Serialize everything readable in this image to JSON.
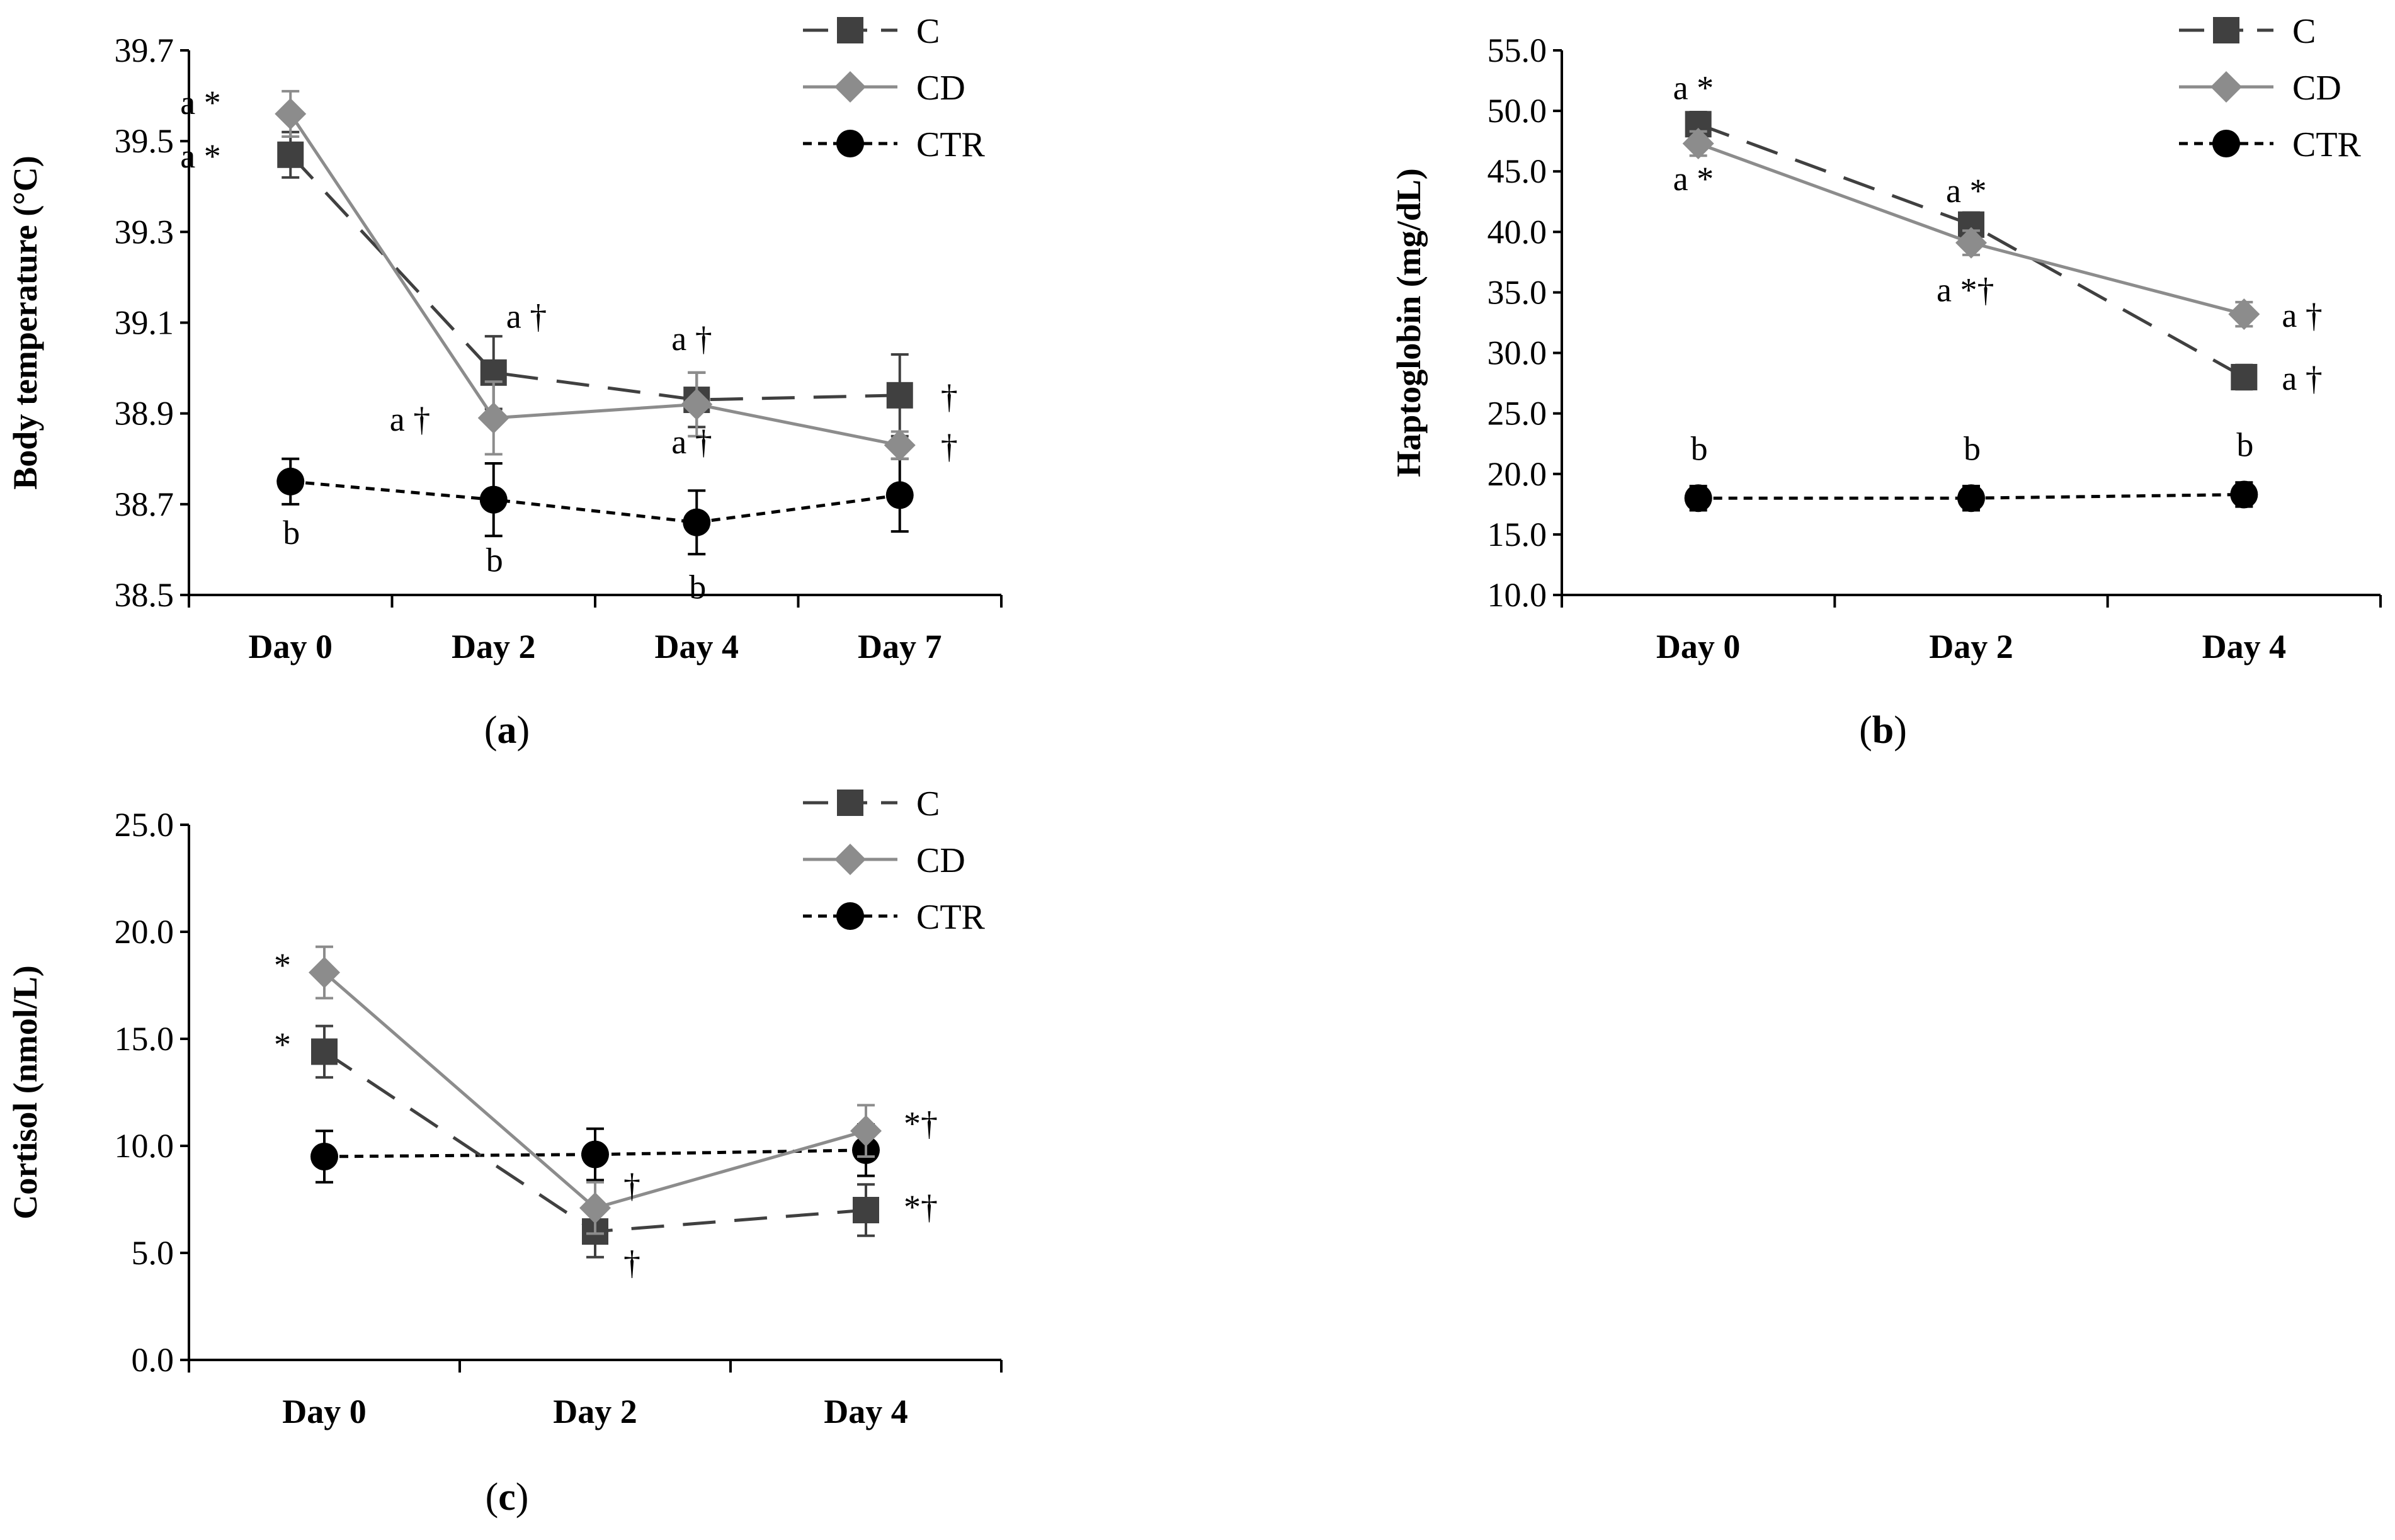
{
  "chart_data": [
    {
      "id": "a",
      "type": "line",
      "caption": "a",
      "ylabel": "Body temperature (°C)",
      "ylim": [
        38.5,
        39.7
      ],
      "ticks": [
        "38.5",
        "38.7",
        "38.9",
        "39.1",
        "39.3",
        "39.5",
        "39.7"
      ],
      "categories": [
        "Day 0",
        "Day 2",
        "Day 4",
        "Day 7"
      ],
      "series": [
        {
          "name": "C",
          "values": [
            39.47,
            38.99,
            38.93,
            38.94
          ],
          "err": [
            0.05,
            0.08,
            0.06,
            0.09
          ]
        },
        {
          "name": "CD",
          "values": [
            39.56,
            38.89,
            38.92,
            38.83
          ],
          "err": [
            0.05,
            0.08,
            0.07,
            0.03
          ]
        },
        {
          "name": "CTR",
          "values": [
            38.75,
            38.71,
            38.66,
            38.72
          ],
          "err": [
            0.05,
            0.08,
            0.07,
            0.08
          ]
        }
      ],
      "annotations": [
        {
          "text": "a *",
          "cat": 0,
          "y": 39.56,
          "dx": -175,
          "dy": 0
        },
        {
          "text": "a *",
          "cat": 0,
          "y": 39.47,
          "dx": -175,
          "dy": 20
        },
        {
          "text": "a †",
          "cat": 1,
          "y": 39.1,
          "dx": 20,
          "dy": 8
        },
        {
          "text": "a †",
          "cat": 1,
          "y": 38.89,
          "dx": -165,
          "dy": 20
        },
        {
          "text": "a †",
          "cat": 2,
          "y": 39.04,
          "dx": -40,
          "dy": 0
        },
        {
          "text": "a †",
          "cat": 2,
          "y": 38.84,
          "dx": -40,
          "dy": 20
        },
        {
          "text": "†",
          "cat": 3,
          "y": 38.94,
          "dx": 65,
          "dy": 20
        },
        {
          "text": "†",
          "cat": 3,
          "y": 38.83,
          "dx": 65,
          "dy": 20
        },
        {
          "text": "b",
          "cat": 0,
          "y": 38.64,
          "dx": -12,
          "dy": 20
        },
        {
          "text": "b",
          "cat": 1,
          "y": 38.58,
          "dx": -12,
          "dy": 20
        },
        {
          "text": "b",
          "cat": 2,
          "y": 38.52,
          "dx": -12,
          "dy": 20
        }
      ]
    },
    {
      "id": "b",
      "type": "line",
      "caption": "b",
      "ylabel": "Haptoglobin (mg/dL)",
      "ylim": [
        10,
        55
      ],
      "ticks": [
        "10.0",
        "15.0",
        "20.0",
        "25.0",
        "30.0",
        "35.0",
        "40.0",
        "45.0",
        "50.0",
        "55.0"
      ],
      "categories": [
        "Day 0",
        "Day 2",
        "Day 4"
      ],
      "series": [
        {
          "name": "C",
          "values": [
            48.9,
            40.6,
            28.0
          ],
          "err": [
            1.0,
            1.0,
            1.0
          ]
        },
        {
          "name": "CD",
          "values": [
            47.3,
            39.1,
            33.2
          ],
          "err": [
            1.0,
            1.0,
            1.0
          ]
        },
        {
          "name": "CTR",
          "values": [
            18.0,
            18.0,
            18.3
          ],
          "err": [
            1.0,
            1.0,
            1.0
          ]
        }
      ],
      "annotations": [
        {
          "text": "a *",
          "cat": 0,
          "y": 52.0,
          "dx": -40,
          "dy": 20
        },
        {
          "text": "a *",
          "cat": 0,
          "y": 44.5,
          "dx": -40,
          "dy": 20
        },
        {
          "text": "a *",
          "cat": 1,
          "y": 43.5,
          "dx": -40,
          "dy": 20
        },
        {
          "text": "a *†",
          "cat": 1,
          "y": 35.3,
          "dx": -55,
          "dy": 20
        },
        {
          "text": "a †",
          "cat": 2,
          "y": 33.2,
          "dx": 60,
          "dy": 20
        },
        {
          "text": "a †",
          "cat": 2,
          "y": 28.0,
          "dx": 60,
          "dy": 20
        },
        {
          "text": "b",
          "cat": 0,
          "y": 22.2,
          "dx": -12,
          "dy": 20
        },
        {
          "text": "b",
          "cat": 1,
          "y": 22.2,
          "dx": -12,
          "dy": 20
        },
        {
          "text": "b",
          "cat": 2,
          "y": 22.5,
          "dx": -12,
          "dy": 20
        }
      ]
    },
    {
      "id": "c",
      "type": "line",
      "caption": "c",
      "ylabel": "Cortisol (nmol/L)",
      "ylim": [
        0,
        25
      ],
      "ticks": [
        "0.0",
        "5.0",
        "10.0",
        "15.0",
        "20.0",
        "25.0"
      ],
      "categories": [
        "Day 0",
        "Day 2",
        "Day 4"
      ],
      "series": [
        {
          "name": "C",
          "values": [
            14.4,
            6.0,
            7.0
          ],
          "err": [
            1.2,
            1.2,
            1.2
          ]
        },
        {
          "name": "CD",
          "values": [
            18.1,
            7.1,
            10.7
          ],
          "err": [
            1.2,
            1.2,
            1.2
          ]
        },
        {
          "name": "CTR",
          "values": [
            9.5,
            9.6,
            9.8
          ],
          "err": [
            1.2,
            1.2,
            1.2
          ]
        }
      ],
      "annotations": [
        {
          "text": "*",
          "cat": 0,
          "y": 18.5,
          "dx": -80,
          "dy": 20
        },
        {
          "text": "*",
          "cat": 0,
          "y": 14.8,
          "dx": -80,
          "dy": 20
        },
        {
          "text": "†",
          "cat": 1,
          "y": 8.2,
          "dx": 45,
          "dy": 20
        },
        {
          "text": "†",
          "cat": 1,
          "y": 4.6,
          "dx": 45,
          "dy": 20
        },
        {
          "text": "*†",
          "cat": 2,
          "y": 11.1,
          "dx": 60,
          "dy": 20
        },
        {
          "text": "*†",
          "cat": 2,
          "y": 7.2,
          "dx": 60,
          "dy": 20
        }
      ]
    }
  ],
  "legend": [
    "C",
    "CD",
    "CTR"
  ],
  "colors": {
    "C": "#404040",
    "CD": "#8c8c8c",
    "CTR": "#000000",
    "axis": "#000000"
  },
  "markers": {
    "C": "square",
    "CD": "diamond",
    "CTR": "circle"
  }
}
